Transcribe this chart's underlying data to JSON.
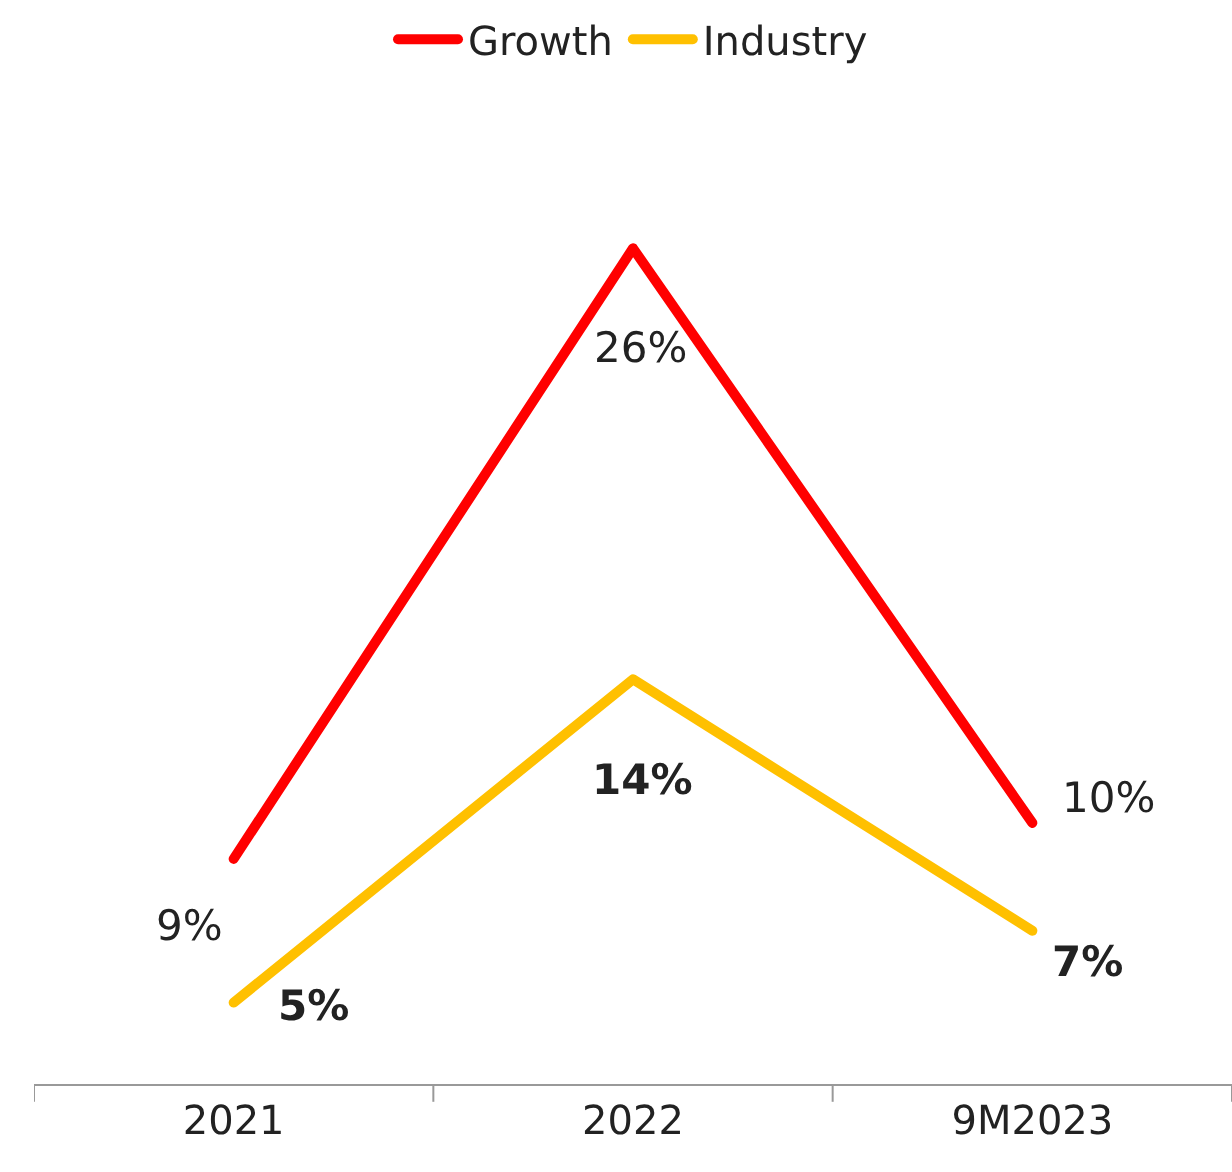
{
  "chart_data": {
    "type": "line",
    "categories": [
      "2021",
      "2022",
      "9M2023"
    ],
    "series": [
      {
        "name": "Growth",
        "color": "#ff0000",
        "values": [
          9,
          26,
          10
        ],
        "value_labels": [
          "9%",
          "26%",
          "10%"
        ]
      },
      {
        "name": "Industry",
        "color": "#ffc000",
        "values": [
          5,
          14,
          7
        ],
        "value_labels": [
          "5%",
          "14%",
          "7%"
        ]
      }
    ],
    "legend": "top",
    "grid": false,
    "marker": "none",
    "line_style": "solid"
  }
}
